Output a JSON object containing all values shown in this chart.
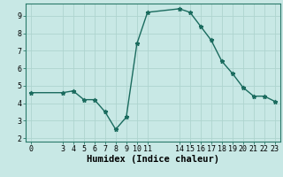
{
  "x": [
    0,
    3,
    4,
    5,
    6,
    7,
    8,
    9,
    10,
    11,
    14,
    15,
    16,
    17,
    18,
    19,
    20,
    21,
    22,
    23
  ],
  "y": [
    4.6,
    4.6,
    4.7,
    4.2,
    4.2,
    3.5,
    2.5,
    3.2,
    7.4,
    9.2,
    9.4,
    9.2,
    8.4,
    7.6,
    6.4,
    5.7,
    4.9,
    4.4,
    4.4,
    4.1
  ],
  "line_color": "#1a6b5e",
  "bg_color": "#c8e8e5",
  "grid_color": "#aed4cf",
  "xlabel": "Humidex (Indice chaleur)",
  "ylim": [
    1.8,
    9.7
  ],
  "xlim": [
    -0.5,
    23.5
  ],
  "yticks": [
    2,
    3,
    4,
    5,
    6,
    7,
    8,
    9
  ],
  "xticks": [
    0,
    3,
    4,
    5,
    6,
    7,
    8,
    9,
    10,
    11,
    14,
    15,
    16,
    17,
    18,
    19,
    20,
    21,
    22,
    23
  ],
  "tick_fontsize": 6,
  "label_fontsize": 7.5
}
